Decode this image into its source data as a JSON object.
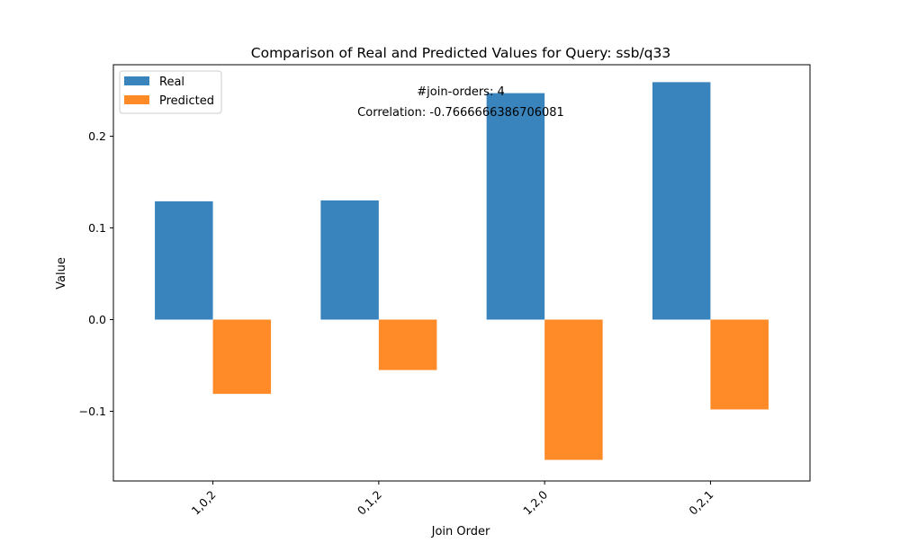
{
  "chart_data": {
    "type": "bar",
    "title": "Comparison of Real and Predicted Values for Query: ssb/q33",
    "xlabel": "Join Order",
    "ylabel": "Value",
    "categories": [
      "1,0,2",
      "0,1,2",
      "1,2,0",
      "0,2,1"
    ],
    "series": [
      {
        "name": "Real",
        "color": "#3a84bd",
        "values": [
          0.129,
          0.13,
          0.247,
          0.259
        ]
      },
      {
        "name": "Predicted",
        "color": "#ff8b28",
        "values": [
          -0.081,
          -0.055,
          -0.153,
          -0.098
        ]
      }
    ],
    "ylim": [
      -0.176,
      0.278
    ],
    "yticks": [
      -0.1,
      0.0,
      0.1,
      0.2
    ],
    "ytick_labels": [
      "−0.1",
      "0.0",
      "0.1",
      "0.2"
    ],
    "legend_position": "top-left",
    "grid": false,
    "annotations": [
      "#join-orders: 4",
      "Correlation: -0.7666666386706081"
    ]
  }
}
